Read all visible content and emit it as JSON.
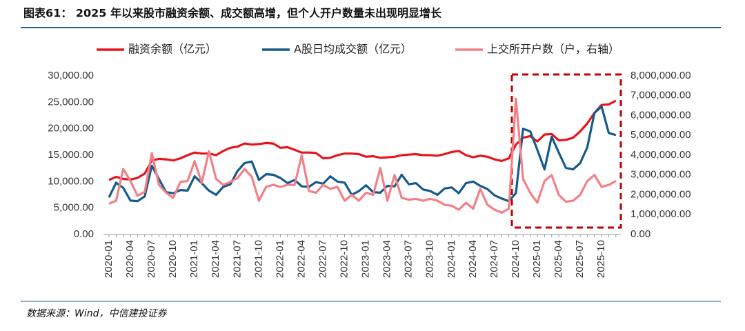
{
  "title": "图表61： 2025 年以来股市融资余额、成交额高增，但个人开户数量未出现明显增长",
  "source": "数据来源：Wind，中信建投证券",
  "chart_data": {
    "type": "line",
    "categories": [
      "2020-01",
      null,
      null,
      "2020-04",
      null,
      null,
      "2020-07",
      null,
      null,
      "2020-10",
      null,
      null,
      "2021-01",
      null,
      null,
      "2021-04",
      null,
      null,
      "2021-07",
      null,
      null,
      "2021-10",
      null,
      null,
      "2022-01",
      null,
      null,
      "2022-04",
      null,
      null,
      "2022-07",
      null,
      null,
      "2022-10",
      null,
      null,
      "2023-01",
      null,
      null,
      "2023-04",
      null,
      null,
      "2023-07",
      null,
      null,
      "2023-10",
      null,
      null,
      "2024-01",
      null,
      null,
      "2024-04",
      null,
      null,
      "2024-07",
      null,
      null,
      "2024-10",
      null,
      null,
      "2025-01",
      null,
      null,
      "2025-04",
      null,
      null,
      "2025-07",
      null,
      null,
      "2025-10",
      null,
      null
    ],
    "series": [
      {
        "name": "融资余额（亿元）",
        "color": "#e8141b",
        "values": [
          10300,
          10900,
          10500,
          10400,
          10700,
          11500,
          14000,
          14300,
          14200,
          14000,
          14400,
          15000,
          15500,
          15300,
          15300,
          15000,
          15800,
          16400,
          16600,
          17200,
          17000,
          17100,
          17300,
          17200,
          16400,
          16500,
          16000,
          15500,
          15500,
          15400,
          14400,
          14500,
          15000,
          15300,
          15300,
          15200,
          14700,
          14800,
          14500,
          14600,
          14700,
          15000,
          15100,
          15200,
          15000,
          15000,
          14900,
          15200,
          15600,
          15800,
          15000,
          14600,
          14900,
          14700,
          14200,
          13900,
          14400,
          17000,
          18300,
          18600,
          17600,
          18900,
          19000,
          17800,
          17900,
          18300,
          19500,
          21000,
          23000,
          24500,
          24600,
          25300
        ]
      },
      {
        "name": "A股日均成交额（亿元）",
        "color": "#145a8a",
        "values": [
          7000,
          9800,
          8800,
          6400,
          6300,
          7200,
          13000,
          10500,
          8000,
          7800,
          8400,
          8300,
          11000,
          9700,
          8300,
          7500,
          9000,
          9500,
          12000,
          13500,
          13800,
          10300,
          11400,
          11300,
          10700,
          9700,
          10300,
          9100,
          9000,
          9900,
          9600,
          11000,
          10000,
          9800,
          7500,
          8200,
          9300,
          8000,
          7900,
          9200,
          9100,
          11300,
          9500,
          9700,
          8500,
          8200,
          7500,
          8700,
          8900,
          7800,
          9700,
          10000,
          9200,
          8600,
          7400,
          6800,
          6300,
          7800,
          20000,
          19500,
          16000,
          12300,
          18500,
          15500,
          12600,
          12300,
          13500,
          16500,
          23000,
          24200,
          19200,
          18800
        ]
      },
      {
        "name": "上交所开户数（户，右轴）",
        "color": "#f47f86",
        "axis": "y2",
        "values": [
          1550000,
          1700000,
          3300000,
          2700000,
          1950000,
          2150000,
          4100000,
          2500000,
          2100000,
          1850000,
          2650000,
          2700000,
          3700000,
          2600000,
          4200000,
          2800000,
          2500000,
          2650000,
          2850000,
          3300000,
          2900000,
          1700000,
          2400000,
          2500000,
          2400000,
          2500000,
          2500000,
          4000000,
          2200000,
          2100000,
          2500000,
          2300000,
          2400000,
          1700000,
          2000000,
          1700000,
          2100000,
          2000000,
          3350000,
          1700000,
          3000000,
          1850000,
          1750000,
          1800000,
          1700000,
          1800000,
          1700000,
          1500000,
          1450000,
          1250000,
          1600000,
          1300000,
          2300000,
          1500000,
          1250000,
          1100000,
          1300000,
          6850000,
          2800000,
          2100000,
          1600000,
          2700000,
          3000000,
          2000000,
          1650000,
          1700000,
          2000000,
          2700000,
          3000000,
          2400000,
          2500000,
          2700000
        ]
      }
    ],
    "ylim": [
      0,
      30000
    ],
    "yticks": [
      {
        "value": 0,
        "label": "0.00"
      },
      {
        "value": 5000,
        "label": "5,000.00"
      },
      {
        "value": 10000,
        "label": "10,000.00"
      },
      {
        "value": 15000,
        "label": "15,000.00"
      },
      {
        "value": 20000,
        "label": "20,000.00"
      },
      {
        "value": 25000,
        "label": "25,000.00"
      },
      {
        "value": 30000,
        "label": "30,000.00"
      }
    ],
    "y2lim": [
      0,
      8000000
    ],
    "y2ticks": [
      {
        "value": 0,
        "label": "0.00"
      },
      {
        "value": 1000000,
        "label": "1,000,000.00"
      },
      {
        "value": 2000000,
        "label": "2,000,000.00"
      },
      {
        "value": 3000000,
        "label": "3,000,000.00"
      },
      {
        "value": 4000000,
        "label": "4,000,000.00"
      },
      {
        "value": 5000000,
        "label": "5,000,000.00"
      },
      {
        "value": 6000000,
        "label": "6,000,000.00"
      },
      {
        "value": 7000000,
        "label": "7,000,000.00"
      },
      {
        "value": 8000000,
        "label": "8,000,000.00"
      }
    ]
  }
}
